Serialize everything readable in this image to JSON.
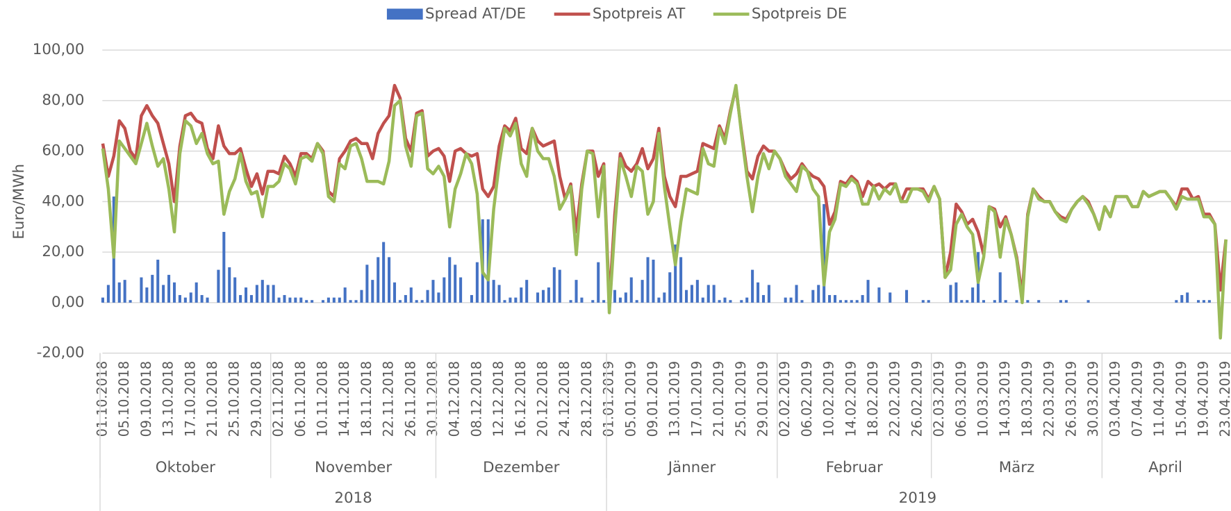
{
  "chart_data": {
    "type": "combo",
    "y_label": "Euro/MWh",
    "legend": "top",
    "grid": true,
    "ylim": [
      -20,
      100
    ],
    "yticks": [
      {
        "value": -20,
        "label": "-20,00"
      },
      {
        "value": 0,
        "label": "0,00"
      },
      {
        "value": 20,
        "label": "20,00"
      },
      {
        "value": 40,
        "label": "40,00"
      },
      {
        "value": 60,
        "label": "60,00"
      },
      {
        "value": 80,
        "label": "80,00"
      },
      {
        "value": 100,
        "label": "100,00"
      }
    ],
    "categories": [
      "01.10.2018",
      null,
      null,
      null,
      "05.10.2018",
      null,
      null,
      null,
      "09.10.2018",
      null,
      null,
      null,
      "13.10.2018",
      null,
      null,
      null,
      "17.10.2018",
      null,
      null,
      null,
      "21.10.2018",
      null,
      null,
      null,
      "25.10.2018",
      null,
      null,
      null,
      "29.10.2018",
      null,
      null,
      null,
      "02.11.2018",
      null,
      null,
      null,
      "06.11.2018",
      null,
      null,
      null,
      "10.11.2018",
      null,
      null,
      null,
      "14.11.2018",
      null,
      null,
      null,
      "18.11.2018",
      null,
      null,
      null,
      "22.11.2018",
      null,
      null,
      null,
      "26.11.2018",
      null,
      null,
      null,
      "30.11.2018",
      null,
      null,
      null,
      "04.12.2018",
      null,
      null,
      null,
      "08.12.2018",
      null,
      null,
      null,
      "12.12.2018",
      null,
      null,
      null,
      "16.12.2018",
      null,
      null,
      null,
      "20.12.2018",
      null,
      null,
      null,
      "24.12.2018",
      null,
      null,
      null,
      "28.12.2018",
      null,
      null,
      null,
      "01.01.2019",
      null,
      null,
      null,
      "05.01.2019",
      null,
      null,
      null,
      "09.01.2019",
      null,
      null,
      null,
      "13.01.2019",
      null,
      null,
      null,
      "17.01.2019",
      null,
      null,
      null,
      "21.01.2019",
      null,
      null,
      null,
      "25.01.2019",
      null,
      null,
      null,
      "29.01.2019",
      null,
      null,
      null,
      "02.02.2019",
      null,
      null,
      null,
      "06.02.2019",
      null,
      null,
      null,
      "10.02.2019",
      null,
      null,
      null,
      "14.02.2019",
      null,
      null,
      null,
      "18.02.2019",
      null,
      null,
      null,
      "22.02.2019",
      null,
      null,
      null,
      "26.02.2019",
      null,
      null,
      null,
      "02.03.2019",
      null,
      null,
      null,
      "06.03.2019",
      null,
      null,
      null,
      "10.03.2019",
      null,
      null,
      null,
      "14.03.2019",
      null,
      null,
      null,
      "18.03.2019",
      null,
      null,
      null,
      "22.03.2019",
      null,
      null,
      null,
      "26.03.2019",
      null,
      null,
      null,
      "30.03.2019",
      null,
      null,
      null,
      "03.04.2019",
      null,
      null,
      null,
      "07.04.2019",
      null,
      null,
      null,
      "11.04.2019",
      null,
      null,
      null,
      "15.04.2019",
      null,
      null,
      null,
      "19.04.2019",
      null,
      null,
      null,
      "23.04.2019"
    ],
    "month_groups": [
      {
        "label": "Oktober",
        "count": 31
      },
      {
        "label": "November",
        "count": 30
      },
      {
        "label": "Dezember",
        "count": 31
      },
      {
        "label": "Jänner",
        "count": 31
      },
      {
        "label": "Februar",
        "count": 28
      },
      {
        "label": "März",
        "count": 31
      },
      {
        "label": "April",
        "count": 23
      }
    ],
    "year_groups": [
      {
        "label": "2018",
        "count": 92
      },
      {
        "label": "2019",
        "count": 113
      }
    ],
    "series": [
      {
        "name": "Spread AT/DE",
        "type": "bar",
        "color": "#4472c4",
        "values": [
          2,
          7,
          42,
          8,
          9,
          1,
          0,
          10,
          6,
          11,
          17,
          7,
          11,
          8,
          3,
          2,
          4,
          8,
          3,
          2,
          0,
          13,
          28,
          14,
          10,
          3,
          6,
          3,
          7,
          9,
          7,
          7,
          2,
          3,
          2,
          2,
          2,
          1,
          1,
          0,
          1,
          2,
          2,
          2,
          6,
          1,
          1,
          5,
          15,
          9,
          18,
          24,
          18,
          8,
          1,
          3,
          6,
          1,
          1,
          5,
          9,
          4,
          10,
          18,
          15,
          10,
          0,
          3,
          16,
          33,
          33,
          9,
          7,
          1,
          2,
          2,
          6,
          9,
          0,
          4,
          5,
          6,
          14,
          13,
          0,
          1,
          9,
          2,
          0,
          1,
          16,
          1,
          4,
          5,
          2,
          4,
          10,
          1,
          9,
          18,
          17,
          2,
          4,
          12,
          23,
          18,
          5,
          7,
          9,
          2,
          7,
          7,
          1,
          2,
          1,
          0,
          1,
          2,
          13,
          8,
          3,
          7,
          0,
          0,
          2,
          2,
          7,
          1,
          0,
          5,
          7,
          39,
          3,
          3,
          1,
          1,
          1,
          1,
          3,
          9,
          0,
          6,
          0,
          4,
          0,
          0,
          5,
          0,
          0,
          1,
          1,
          0,
          0,
          0,
          7,
          8,
          1,
          1,
          6,
          20,
          1,
          0,
          1,
          12,
          1,
          0,
          1,
          3,
          1,
          0,
          1,
          0,
          0,
          0,
          1,
          1,
          0,
          0,
          0,
          1,
          0,
          0,
          0,
          0,
          0,
          0,
          0,
          0,
          0,
          0,
          0,
          0,
          0,
          0,
          0,
          1,
          3,
          4,
          0,
          1,
          1,
          1,
          0,
          0,
          0
        ]
      },
      {
        "name": "Spotpreis AT",
        "type": "line",
        "color": "#c0504d",
        "values": [
          63,
          50,
          58,
          72,
          69,
          60,
          57,
          74,
          78,
          74,
          71,
          63,
          55,
          40,
          62,
          74,
          75,
          72,
          71,
          61,
          57,
          70,
          62,
          59,
          59,
          61,
          53,
          46,
          51,
          43,
          52,
          52,
          51,
          58,
          55,
          50,
          59,
          59,
          57,
          63,
          60,
          44,
          42,
          57,
          60,
          64,
          65,
          63,
          63,
          57,
          67,
          71,
          74,
          86,
          81,
          65,
          60,
          75,
          76,
          58,
          60,
          61,
          58,
          48,
          60,
          61,
          59,
          58,
          59,
          45,
          42,
          46,
          62,
          70,
          68,
          73,
          61,
          59,
          69,
          64,
          62,
          63,
          64,
          50,
          41,
          47,
          28,
          47,
          60,
          60,
          50,
          55,
          0,
          35,
          59,
          54,
          52,
          55,
          61,
          53,
          57,
          69,
          50,
          42,
          38,
          50,
          50,
          51,
          52,
          63,
          62,
          61,
          70,
          65,
          76,
          85,
          68,
          52,
          49,
          58,
          62,
          60,
          60,
          57,
          52,
          49,
          51,
          55,
          52,
          50,
          49,
          46,
          31,
          36,
          48,
          47,
          50,
          48,
          42,
          48,
          46,
          47,
          45,
          47,
          47,
          40,
          45,
          45,
          45,
          45,
          41,
          46,
          41,
          10,
          20,
          39,
          36,
          31,
          33,
          28,
          19,
          38,
          37,
          30,
          34,
          27,
          18,
          3,
          35,
          45,
          42,
          40,
          40,
          36,
          34,
          33,
          37,
          40,
          42,
          40,
          35,
          29,
          38,
          34,
          42,
          42,
          42,
          38,
          38,
          44,
          42,
          43,
          44,
          44,
          41,
          38,
          45,
          45,
          41,
          42,
          35,
          35,
          31,
          5,
          25
        ]
      },
      {
        "name": "Spotpreis DE",
        "type": "line",
        "color": "#9bbb59",
        "values": [
          61,
          45,
          18,
          64,
          61,
          58,
          55,
          63,
          71,
          62,
          54,
          57,
          45,
          28,
          59,
          72,
          70,
          63,
          67,
          59,
          55,
          56,
          35,
          44,
          49,
          59,
          48,
          43,
          44,
          34,
          46,
          46,
          48,
          55,
          53,
          47,
          57,
          58,
          56,
          63,
          59,
          42,
          40,
          55,
          53,
          62,
          63,
          57,
          48,
          48,
          48,
          47,
          56,
          78,
          80,
          62,
          54,
          74,
          75,
          53,
          51,
          54,
          50,
          30,
          45,
          51,
          59,
          55,
          43,
          12,
          9,
          37,
          55,
          69,
          66,
          71,
          55,
          50,
          69,
          60,
          57,
          57,
          50,
          37,
          41,
          46,
          19,
          45,
          60,
          59,
          34,
          54,
          -4,
          30,
          57,
          50,
          42,
          54,
          52,
          35,
          40,
          67,
          46,
          30,
          15,
          32,
          45,
          44,
          43,
          61,
          55,
          54,
          69,
          63,
          75,
          86,
          67,
          50,
          36,
          50,
          59,
          53,
          60,
          57,
          50,
          47,
          44,
          54,
          52,
          45,
          42,
          7,
          28,
          33,
          47,
          46,
          49,
          47,
          39,
          39,
          46,
          41,
          45,
          43,
          47,
          40,
          40,
          45,
          45,
          44,
          40,
          46,
          41,
          10,
          13,
          31,
          35,
          30,
          27,
          8,
          18,
          38,
          36,
          18,
          33,
          27,
          17,
          0,
          34,
          45,
          41,
          40,
          40,
          36,
          33,
          32,
          37,
          40,
          42,
          39,
          35,
          29,
          38,
          34,
          42,
          42,
          42,
          38,
          38,
          44,
          42,
          43,
          44,
          44,
          41,
          37,
          42,
          41,
          41,
          41,
          34,
          34,
          31,
          -14,
          25
        ]
      }
    ]
  }
}
